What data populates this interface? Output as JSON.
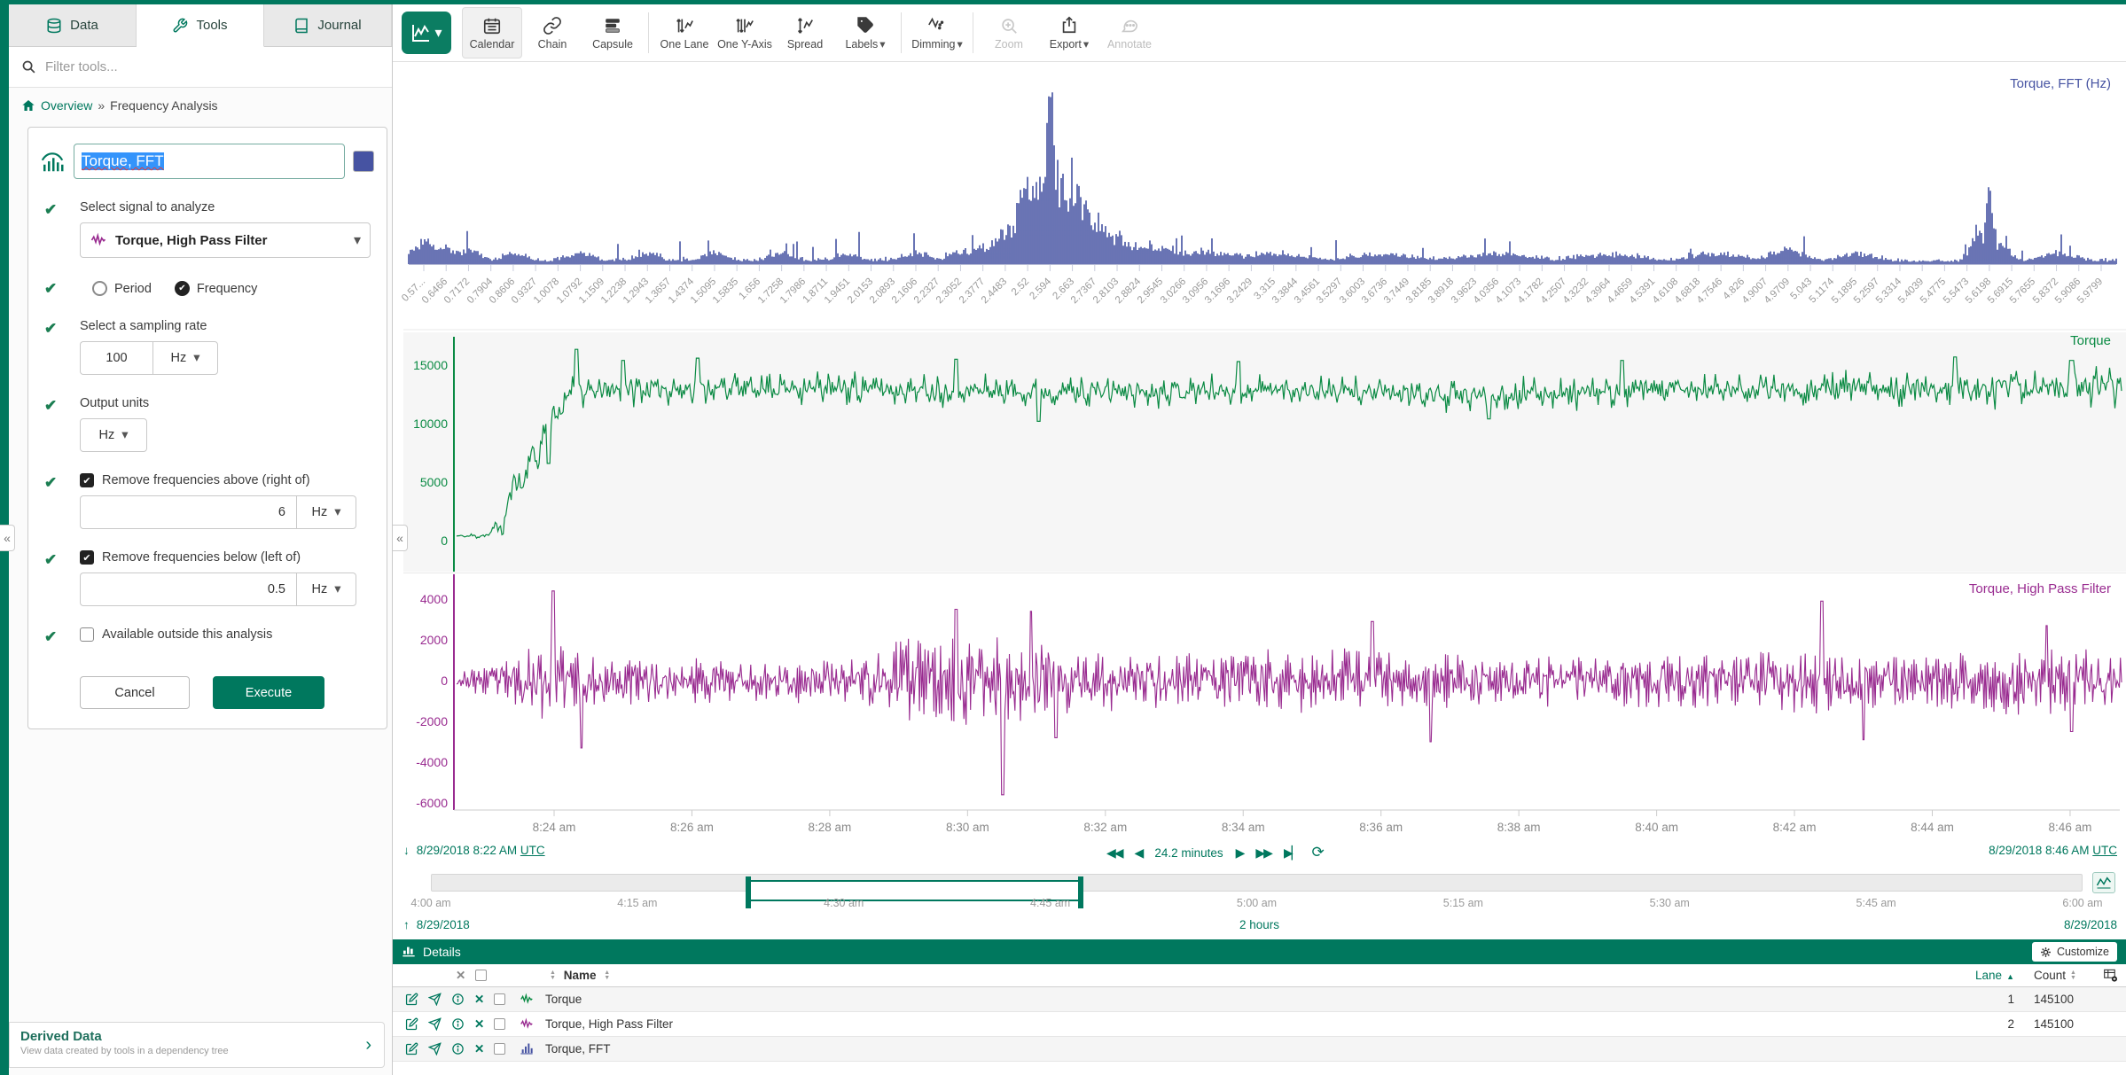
{
  "app": {
    "collapse_glyph": "«"
  },
  "sidebar": {
    "tabs": [
      {
        "label": "Data"
      },
      {
        "label": "Tools"
      },
      {
        "label": "Journal"
      }
    ],
    "active_tab": 1,
    "filter_placeholder": "Filter tools...",
    "breadcrumb": {
      "home_label": "Overview",
      "separator": "»",
      "current": "Frequency Analysis"
    },
    "tool": {
      "name_value": "Torque, FFT",
      "swatch_color": "#4653a2",
      "signal_label": "Select signal to analyze",
      "signal_value": "Torque, High Pass Filter",
      "period_label": "Period",
      "frequency_label": "Frequency",
      "frequency_selected": true,
      "sampling_label": "Select a sampling rate",
      "sampling_value": "100",
      "sampling_unit": "Hz",
      "output_label": "Output units",
      "output_unit": "Hz",
      "above_label": "Remove frequencies above (right of)",
      "above_checked": true,
      "above_value": "6",
      "above_unit": "Hz",
      "below_label": "Remove frequencies below (left of)",
      "below_checked": true,
      "below_value": "0.5",
      "below_unit": "Hz",
      "outside_label": "Available outside this analysis",
      "outside_checked": false,
      "cancel_label": "Cancel",
      "execute_label": "Execute"
    },
    "derived": {
      "title": "Derived Data",
      "subtitle": "View data created by tools in a dependency tree"
    }
  },
  "toolbar": {
    "items": [
      {
        "label": "Calendar",
        "active": true
      },
      {
        "label": "Chain"
      },
      {
        "label": "Capsule"
      },
      {
        "label": "One Lane"
      },
      {
        "label": "One Y-Axis"
      },
      {
        "label": "Spread"
      },
      {
        "label": "Labels",
        "caret": true
      },
      {
        "label": "Dimming",
        "caret": true
      },
      {
        "label": "Zoom",
        "disabled": true
      },
      {
        "label": "Export",
        "caret": true
      },
      {
        "label": "Annotate",
        "disabled": true
      }
    ]
  },
  "nav": {
    "start": "8/29/2018 8:22 AM",
    "start_tz": "UTC",
    "duration": "24.2 minutes",
    "end": "8/29/2018 8:46 AM",
    "end_tz": "UTC"
  },
  "scrubber": {
    "ticks": [
      "4:00 am",
      "4:15 am",
      "4:30 am",
      "4:45 am",
      "5:00 am",
      "5:15 am",
      "5:30 am",
      "5:45 am",
      "6:00 am"
    ],
    "selection": [
      0.193,
      0.391
    ],
    "range_label": "2 hours",
    "date_left": "8/29/2018",
    "date_right": "8/29/2018"
  },
  "details": {
    "title": "Details",
    "customize_label": "Customize",
    "name_header": "Name",
    "lane_header": "Lane",
    "count_header": "Count",
    "rows": [
      {
        "name": "Torque",
        "type": "signal",
        "color": "#0a8a43",
        "lane": "1",
        "count": "145100"
      },
      {
        "name": "Torque, High Pass Filter",
        "type": "signal",
        "color": "#992b90",
        "lane": "2",
        "count": "145100"
      },
      {
        "name": "Torque, FFT",
        "type": "histogram",
        "color": "#4653a2",
        "lane": "",
        "count": ""
      }
    ]
  },
  "x_axis": {
    "ticks": [
      "8:24 am",
      "8:26 am",
      "8:28 am",
      "8:30 am",
      "8:32 am",
      "8:34 am",
      "8:36 am",
      "8:38 am",
      "8:40 am",
      "8:42 am",
      "8:44 am",
      "8:46 am"
    ]
  },
  "chart_data": [
    {
      "type": "bar",
      "title": "Torque, FFT (Hz)",
      "color": "#4653a2",
      "ylim": [
        0,
        1
      ],
      "x_ticks": [
        "0.57...",
        "0.6466",
        "0.7172",
        "0.7904",
        "0.8606",
        "0.9327",
        "1.0078",
        "1.0792",
        "1.1509",
        "1.2238",
        "1.2943",
        "1.3657",
        "1.4374",
        "1.5095",
        "1.5835",
        "1.656",
        "1.7258",
        "1.7986",
        "1.8711",
        "1.9451",
        "2.0153",
        "2.0893",
        "2.1606",
        "2.2327",
        "2.3052",
        "2.3777",
        "2.4483",
        "2.52",
        "2.594",
        "2.663",
        "2.7367",
        "2.8103",
        "2.8824",
        "2.9545",
        "3.0266",
        "3.0956",
        "3.1696",
        "3.2429",
        "3.315",
        "3.3844",
        "3.4561",
        "3.5297",
        "3.6003",
        "3.6736",
        "3.7449",
        "3.8185",
        "3.8918",
        "3.9623",
        "4.0356",
        "4.1073",
        "4.1782",
        "4.2507",
        "4.3232",
        "4.3964",
        "4.4659",
        "4.5391",
        "4.6108",
        "4.6818",
        "4.7546",
        "4.826",
        "4.9007",
        "4.9709",
        "5.043",
        "5.1174",
        "5.1895",
        "5.2597",
        "5.3314",
        "5.4039",
        "5.4775",
        "5.5473",
        "5.6198",
        "5.6915",
        "5.7655",
        "5.8372",
        "5.9086",
        "5.9799"
      ],
      "peaks": [
        {
          "i": 0,
          "h": 0.14
        },
        {
          "i": 1,
          "h": 0.1
        },
        {
          "i": 2,
          "h": 0.07
        },
        {
          "i": 4,
          "h": 0.05
        },
        {
          "i": 7,
          "h": 0.06
        },
        {
          "i": 10,
          "h": 0.05
        },
        {
          "i": 13,
          "h": 0.06
        },
        {
          "i": 16,
          "h": 0.05
        },
        {
          "i": 19,
          "h": 0.05
        },
        {
          "i": 22,
          "h": 0.06
        },
        {
          "i": 24,
          "h": 0.07
        },
        {
          "i": 25,
          "h": 0.1
        },
        {
          "i": 26,
          "h": 0.2,
          "w": 0.8
        },
        {
          "i": 26.7,
          "h": 0.32
        },
        {
          "i": 27,
          "h": 0.48
        },
        {
          "i": 27.5,
          "h": 0.42
        },
        {
          "i": 27.8,
          "h": 0.62
        },
        {
          "i": 28,
          "h": 1.0,
          "w": 0.35
        },
        {
          "i": 28.3,
          "h": 0.55
        },
        {
          "i": 28.7,
          "h": 0.42
        },
        {
          "i": 29,
          "h": 0.5
        },
        {
          "i": 29.5,
          "h": 0.32
        },
        {
          "i": 30,
          "h": 0.27,
          "w": 0.9
        },
        {
          "i": 30.6,
          "h": 0.18
        },
        {
          "i": 31,
          "h": 0.15,
          "w": 1.2
        },
        {
          "i": 32,
          "h": 0.11,
          "w": 1.2
        },
        {
          "i": 33,
          "h": 0.08,
          "w": 1.5
        },
        {
          "i": 35,
          "h": 0.06,
          "w": 2
        },
        {
          "i": 38,
          "h": 0.05,
          "w": 2
        },
        {
          "i": 43,
          "h": 0.04,
          "w": 2
        },
        {
          "i": 48,
          "h": 0.05,
          "w": 2
        },
        {
          "i": 53,
          "h": 0.04,
          "w": 2
        },
        {
          "i": 58,
          "h": 0.05,
          "w": 1.5
        },
        {
          "i": 61,
          "h": 0.07,
          "w": 1
        },
        {
          "i": 64,
          "h": 0.05,
          "w": 1
        },
        {
          "i": 69.5,
          "h": 0.22,
          "w": 0.4
        },
        {
          "i": 70,
          "h": 0.42,
          "w": 0.3
        },
        {
          "i": 70.5,
          "h": 0.12,
          "w": 0.5
        },
        {
          "i": 73,
          "h": 0.05,
          "w": 1
        }
      ],
      "note": "FFT magnitude spectrum of Torque, High Pass Filter; dominant peak at 2.594 Hz with cluster 2.45-2.75 Hz, secondary peak near 5.62 Hz"
    },
    {
      "type": "line",
      "title": "Torque",
      "color": "#0a8a43",
      "yticks": [
        15000,
        10000,
        5000,
        0
      ],
      "ylim": [
        -2800,
        17400
      ],
      "profile": [
        [
          0,
          380
        ],
        [
          0.014,
          400
        ],
        [
          0.02,
          520
        ],
        [
          0.024,
          1500
        ],
        [
          0.027,
          600
        ],
        [
          0.031,
          3200
        ],
        [
          0.035,
          5600
        ],
        [
          0.039,
          4200
        ],
        [
          0.044,
          7600
        ],
        [
          0.049,
          6900
        ],
        [
          0.056,
          11200
        ],
        [
          0.062,
          10400
        ],
        [
          0.07,
          13600
        ],
        [
          0.076,
          12500
        ],
        [
          0.09,
          12900
        ],
        [
          0.2,
          13100
        ],
        [
          0.35,
          12700
        ],
        [
          0.5,
          12900
        ],
        [
          0.6,
          12400
        ],
        [
          0.75,
          12900
        ],
        [
          0.88,
          13000
        ],
        [
          1,
          13200
        ]
      ],
      "amp": [
        [
          0,
          120
        ],
        [
          0.02,
          260
        ],
        [
          0.03,
          900
        ],
        [
          0.05,
          1400
        ],
        [
          0.08,
          1200
        ],
        [
          0.2,
          1250
        ],
        [
          0.55,
          1150
        ],
        [
          0.85,
          1300
        ],
        [
          0.93,
          1500
        ],
        [
          1,
          1500
        ]
      ],
      "spikes": [
        {
          "x": 0.055,
          "v": 6600
        },
        {
          "x": 0.072,
          "v": 16350
        },
        {
          "x": 0.1,
          "v": 15400
        },
        {
          "x": 0.145,
          "v": 15600
        },
        {
          "x": 0.3,
          "v": 15500
        },
        {
          "x": 0.35,
          "v": 10200
        },
        {
          "x": 0.47,
          "v": 15300
        },
        {
          "x": 0.62,
          "v": 10400
        },
        {
          "x": 0.7,
          "v": 15400
        },
        {
          "x": 0.9,
          "v": 15700
        },
        {
          "x": 0.97,
          "v": 15400
        }
      ],
      "description": "Raw torque signal: ~400 until 8:23, ramps to ~13000 by 8:25, then oscillates 10500-15500 through 8:46"
    },
    {
      "type": "line",
      "title": "Torque, High Pass Filter",
      "color": "#992b90",
      "yticks": [
        4000,
        2000,
        0,
        -2000,
        -4000,
        -6000
      ],
      "ylim": [
        -7200,
        5200
      ],
      "env": [
        [
          0,
          0.25
        ],
        [
          0.008,
          0.5
        ],
        [
          0.03,
          0.8
        ],
        [
          0.05,
          1.5
        ],
        [
          0.09,
          1.1
        ],
        [
          0.15,
          0.85
        ],
        [
          0.22,
          0.9
        ],
        [
          0.27,
          1.7
        ],
        [
          0.33,
          1.8
        ],
        [
          0.38,
          1.2
        ],
        [
          0.45,
          1.0
        ],
        [
          0.52,
          1.3
        ],
        [
          0.6,
          1.0
        ],
        [
          0.68,
          0.95
        ],
        [
          0.75,
          1.15
        ],
        [
          0.82,
          1.25
        ],
        [
          0.88,
          1.0
        ],
        [
          0.93,
          1.3
        ],
        [
          1,
          1.15
        ]
      ],
      "spikes": [
        {
          "x": 0.058,
          "v": 4400
        },
        {
          "x": 0.075,
          "v": -3300
        },
        {
          "x": 0.3,
          "v": 3500
        },
        {
          "x": 0.328,
          "v": -5600
        },
        {
          "x": 0.345,
          "v": 3400
        },
        {
          "x": 0.36,
          "v": -2800
        },
        {
          "x": 0.55,
          "v": 2900
        },
        {
          "x": 0.585,
          "v": -3000
        },
        {
          "x": 0.82,
          "v": 3900
        },
        {
          "x": 0.845,
          "v": -2900
        },
        {
          "x": 0.955,
          "v": 2700
        },
        {
          "x": 0.97,
          "v": -2500
        }
      ],
      "description": "Zero-mean high-pass filtered torque, typical amplitude ±1500 with spikes to +4400 and -5600"
    }
  ]
}
